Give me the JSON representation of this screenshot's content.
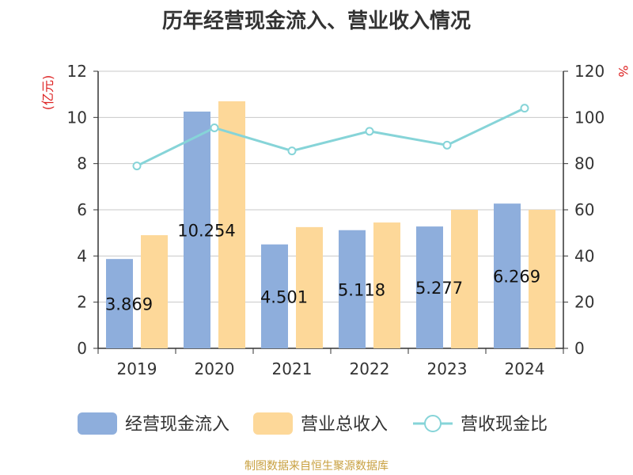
{
  "chart_data": {
    "type": "bar",
    "title": "历年经营现金流入、营业收入情况",
    "categories": [
      "2019",
      "2020",
      "2021",
      "2022",
      "2023",
      "2024"
    ],
    "y_left": {
      "label": "(亿元)",
      "ylim": [
        0,
        12
      ],
      "ticks": [
        0,
        2,
        4,
        6,
        8,
        10,
        12
      ]
    },
    "y_right": {
      "label": "%",
      "ylim": [
        0,
        120
      ],
      "ticks": [
        0,
        20,
        40,
        60,
        80,
        100,
        120
      ]
    },
    "grid": true,
    "legend_position": "bottom",
    "series": [
      {
        "name": "经营现金流入",
        "type": "bar",
        "axis": "left",
        "color": "#8eaedc",
        "values": [
          3.869,
          10.254,
          4.501,
          5.118,
          5.277,
          6.269
        ],
        "data_labels": [
          "3.869",
          "10.254",
          "4.501",
          "5.118",
          "5.277",
          "6.269"
        ]
      },
      {
        "name": "营业总收入",
        "type": "bar",
        "axis": "left",
        "color": "#fdd899",
        "values": [
          4.9,
          10.7,
          5.25,
          5.45,
          6.0,
          6.0
        ]
      },
      {
        "name": "营收现金比",
        "type": "line",
        "axis": "right",
        "color": "#86d4d8",
        "values": [
          79,
          95.5,
          85.5,
          94,
          88,
          104
        ]
      }
    ]
  },
  "source": "制图数据来自恒生聚源数据库"
}
